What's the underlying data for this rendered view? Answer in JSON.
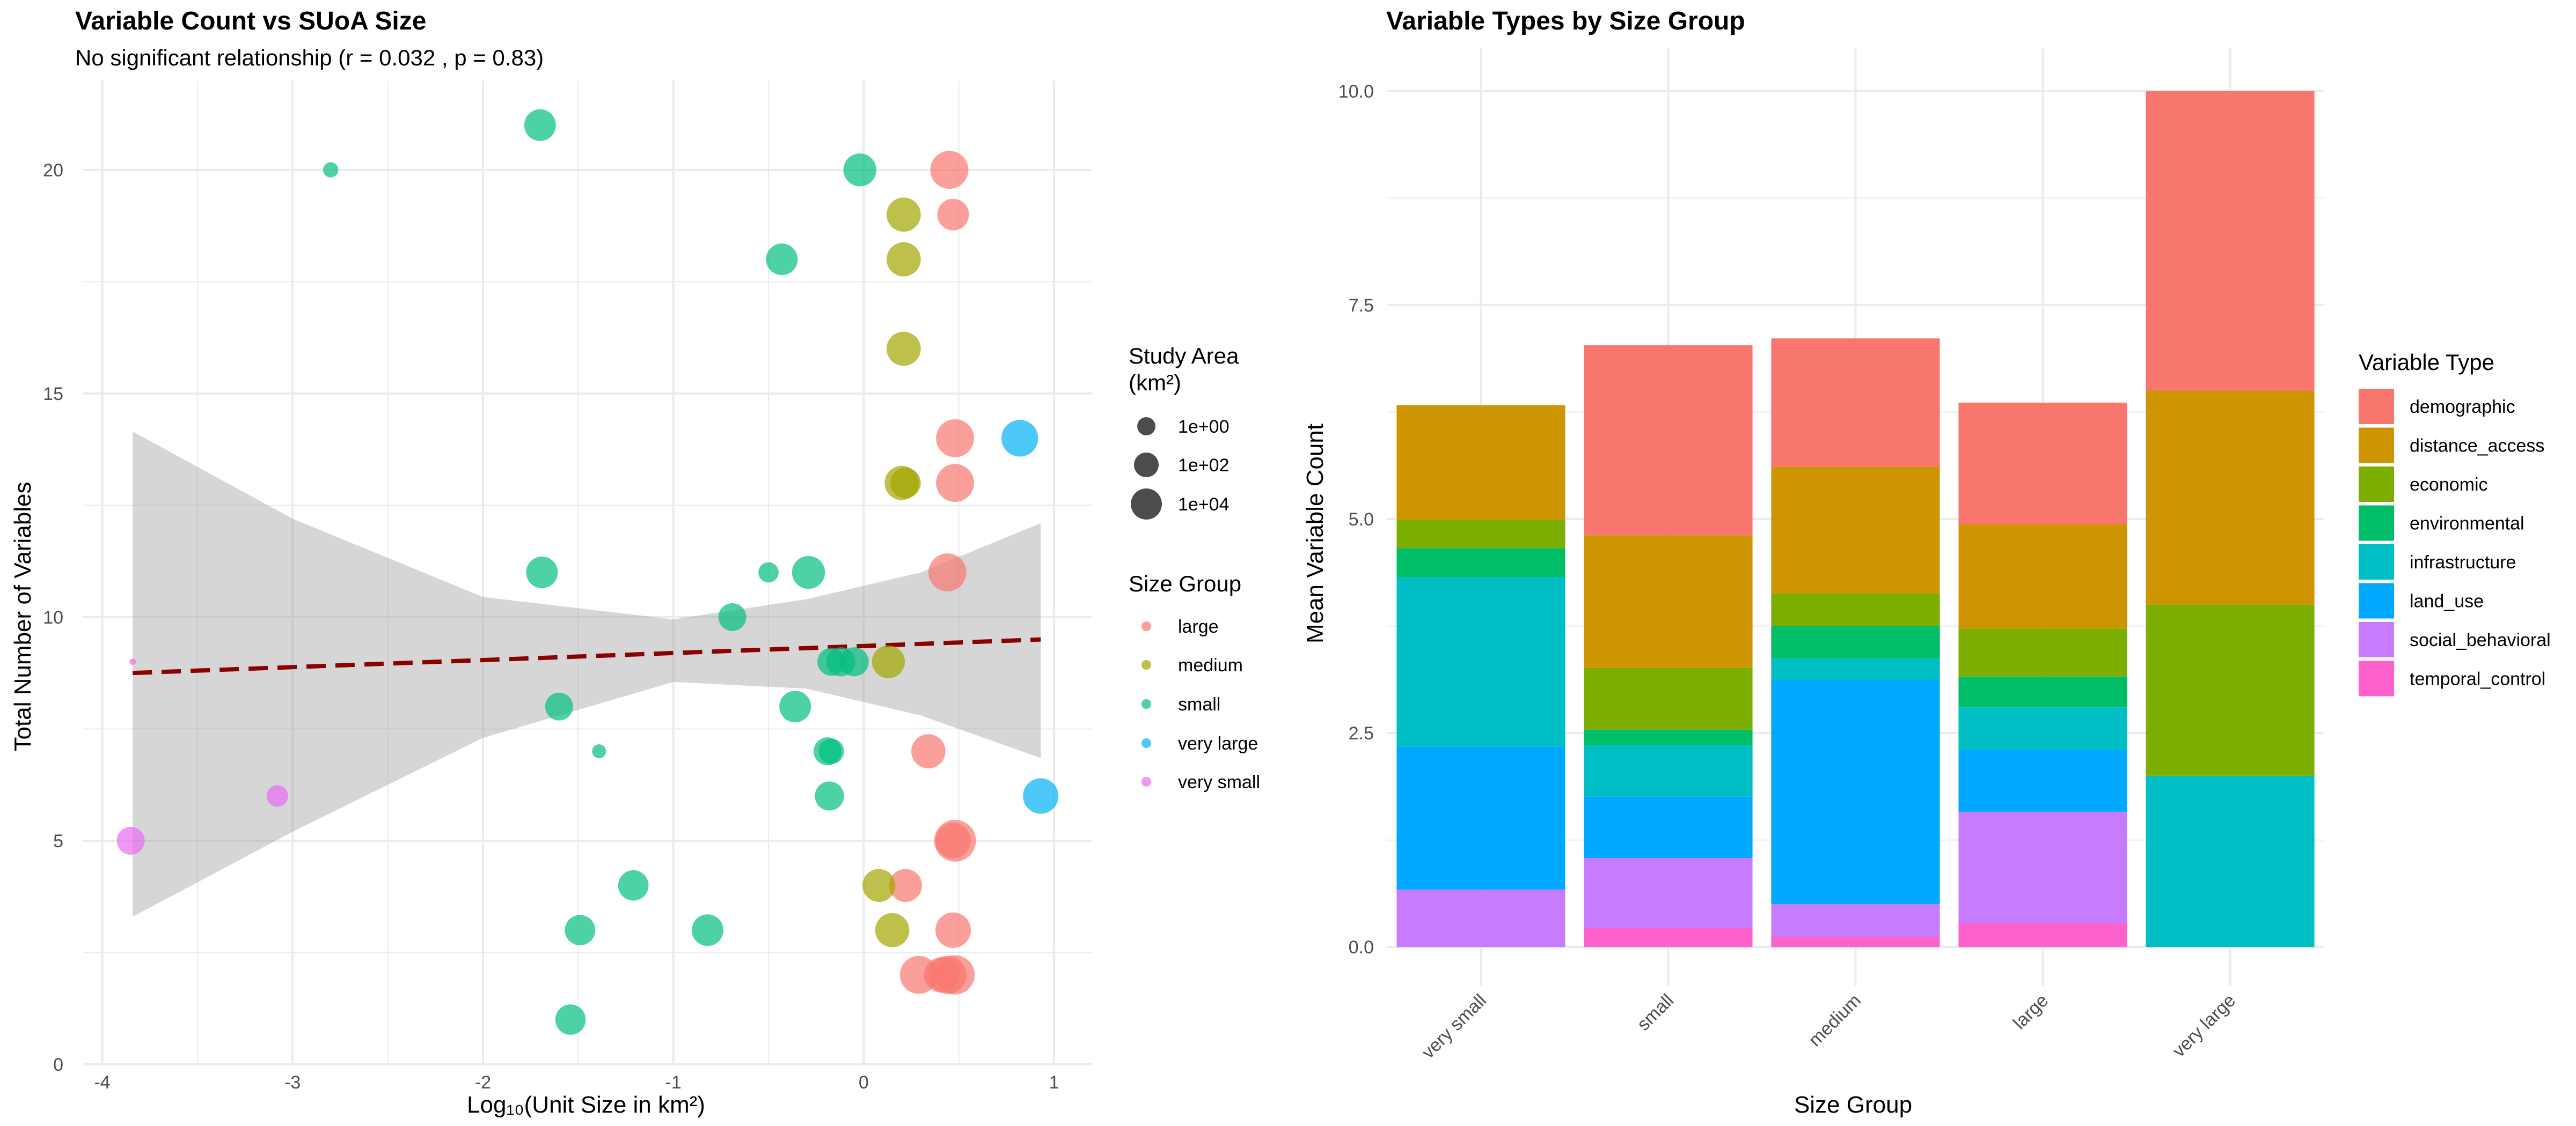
{
  "chart_data": [
    {
      "type": "scatter",
      "title": "Variable Count vs SUoA Size",
      "subtitle": "No significant relationship (r = 0.032 , p = 0.83)",
      "xlabel": "Log₁₀(Unit Size in km²)",
      "ylabel": "Total Number of Variables",
      "xlim": [
        -4.1,
        1.2
      ],
      "ylim": [
        0,
        22
      ],
      "xticks": [
        -4,
        -3,
        -2,
        -1,
        0,
        1
      ],
      "xtick_labels": [
        "-4",
        "-3",
        "-2",
        "-1",
        "0",
        "1"
      ],
      "yticks": [
        0,
        5,
        10,
        15,
        20
      ],
      "ytick_labels": [
        "0",
        "5",
        "10",
        "15",
        "20"
      ],
      "grid": true,
      "trend_line": {
        "x": [
          -3.84,
          0.93
        ],
        "y": [
          8.75,
          9.5
        ],
        "color": "#8b0000",
        "style": "dashed"
      },
      "confidence_band": {
        "x": [
          -3.84,
          -3.0,
          -2.0,
          -1.0,
          -0.3,
          0.3,
          0.93
        ],
        "upper": [
          14.15,
          12.2,
          10.45,
          9.95,
          10.4,
          11.0,
          12.1
        ],
        "lower": [
          3.3,
          5.2,
          7.3,
          8.55,
          8.4,
          7.8,
          6.85
        ]
      },
      "size_legend": {
        "title": [
          "Study Area",
          "(km²)"
        ],
        "labels": [
          "1e+00",
          "1e+02",
          "1e+04"
        ]
      },
      "color_legend": {
        "title": "Size Group",
        "labels": [
          "large",
          "medium",
          "small",
          "very large",
          "very small"
        ]
      },
      "group_colors": {
        "large": "#F8766D",
        "medium": "#A3A500",
        "small": "#00BF7D",
        "very large": "#00B0F6",
        "very small": "#E76BF3"
      },
      "series": [
        {
          "name": "large",
          "points": [
            [
              0.45,
              20,
              3
            ],
            [
              0.47,
              19,
              2.5
            ],
            [
              0.48,
              14,
              3
            ],
            [
              0.48,
              13,
              3
            ],
            [
              0.44,
              11,
              3
            ],
            [
              0.34,
              7,
              2.7
            ],
            [
              0.48,
              5,
              3.3
            ],
            [
              0.47,
              5,
              2.8
            ],
            [
              0.22,
              4,
              2.6
            ],
            [
              0.47,
              3,
              2.8
            ],
            [
              0.29,
              2,
              3
            ],
            [
              0.41,
              2,
              2.8
            ],
            [
              0.44,
              2,
              3
            ],
            [
              0.48,
              2,
              3.1
            ]
          ]
        },
        {
          "name": "medium",
          "points": [
            [
              0.21,
              19,
              2.7
            ],
            [
              0.21,
              18,
              2.7
            ],
            [
              0.21,
              16,
              2.7
            ],
            [
              0.2,
              13,
              2.7
            ],
            [
              0.22,
              13,
              2.4
            ],
            [
              0.13,
              9,
              2.6
            ],
            [
              0.08,
              4,
              2.6
            ],
            [
              0.15,
              3,
              2.7
            ]
          ]
        },
        {
          "name": "small",
          "points": [
            [
              -1.7,
              21,
              2.5
            ],
            [
              -2.8,
              20,
              1.2
            ],
            [
              -0.02,
              20,
              2.6
            ],
            [
              -0.43,
              18,
              2.5
            ],
            [
              -0.5,
              11,
              1.6
            ],
            [
              -0.29,
              11,
              2.6
            ],
            [
              -1.69,
              11,
              2.5
            ],
            [
              -0.69,
              10,
              2.2
            ],
            [
              -0.17,
              9,
              2.2
            ],
            [
              -0.12,
              9,
              2.3
            ],
            [
              -0.05,
              9,
              2.3
            ],
            [
              -0.36,
              8,
              2.5
            ],
            [
              -1.6,
              8,
              2.2
            ],
            [
              -1.39,
              7,
              1.1
            ],
            [
              -0.19,
              7,
              2.2
            ],
            [
              -0.17,
              7,
              2.0
            ],
            [
              -0.18,
              6,
              2.3
            ],
            [
              -1.21,
              4,
              2.4
            ],
            [
              -1.49,
              3,
              2.4
            ],
            [
              -0.82,
              3,
              2.5
            ],
            [
              -1.54,
              1,
              2.4
            ]
          ]
        },
        {
          "name": "very large",
          "points": [
            [
              0.82,
              14,
              2.9
            ],
            [
              0.93,
              6,
              2.8
            ]
          ]
        },
        {
          "name": "very small",
          "points": [
            [
              -3.84,
              9,
              0.5
            ],
            [
              -3.08,
              6,
              1.7
            ],
            [
              -3.85,
              5,
              2.2
            ]
          ]
        }
      ]
    },
    {
      "type": "bar",
      "stacked": true,
      "title": "Variable Types by Size Group",
      "xlabel": "Size Group",
      "ylabel": "Mean Variable Count",
      "categories": [
        "very small",
        "small",
        "medium",
        "large",
        "very large"
      ],
      "ylim": [
        -0.45,
        10.5
      ],
      "yticks": [
        0,
        2.5,
        5,
        7.5,
        10
      ],
      "ytick_labels": [
        "0.0",
        "2.5",
        "5.0",
        "7.5",
        "10.0"
      ],
      "grid": true,
      "legend": {
        "title": "Variable Type",
        "position": "right"
      },
      "series": [
        {
          "name": "demographic",
          "color": "#F8766D",
          "values": [
            0,
            2.22,
            1.5,
            1.42,
            3.5
          ]
        },
        {
          "name": "distance_access",
          "color": "#CD9600",
          "values": [
            1.34,
            1.55,
            1.48,
            1.22,
            2.5
          ]
        },
        {
          "name": "economic",
          "color": "#7CAE00",
          "values": [
            0.33,
            0.72,
            0.38,
            0.56,
            2.0
          ]
        },
        {
          "name": "environmental",
          "color": "#00BE67",
          "values": [
            0.34,
            0.18,
            0.38,
            0.36,
            0
          ]
        },
        {
          "name": "infrastructure",
          "color": "#00BFC4",
          "values": [
            1.98,
            0.6,
            0.25,
            0.5,
            2.0
          ]
        },
        {
          "name": "land_use",
          "color": "#00A9FF",
          "values": [
            1.67,
            0.72,
            2.62,
            0.72,
            0
          ]
        },
        {
          "name": "social_behavioral",
          "color": "#C77CFF",
          "values": [
            0.67,
            0.82,
            0.38,
            1.3,
            0
          ]
        },
        {
          "name": "temporal_control",
          "color": "#FF61CC",
          "values": [
            0,
            0.22,
            0.12,
            0.28,
            0
          ]
        }
      ]
    }
  ]
}
